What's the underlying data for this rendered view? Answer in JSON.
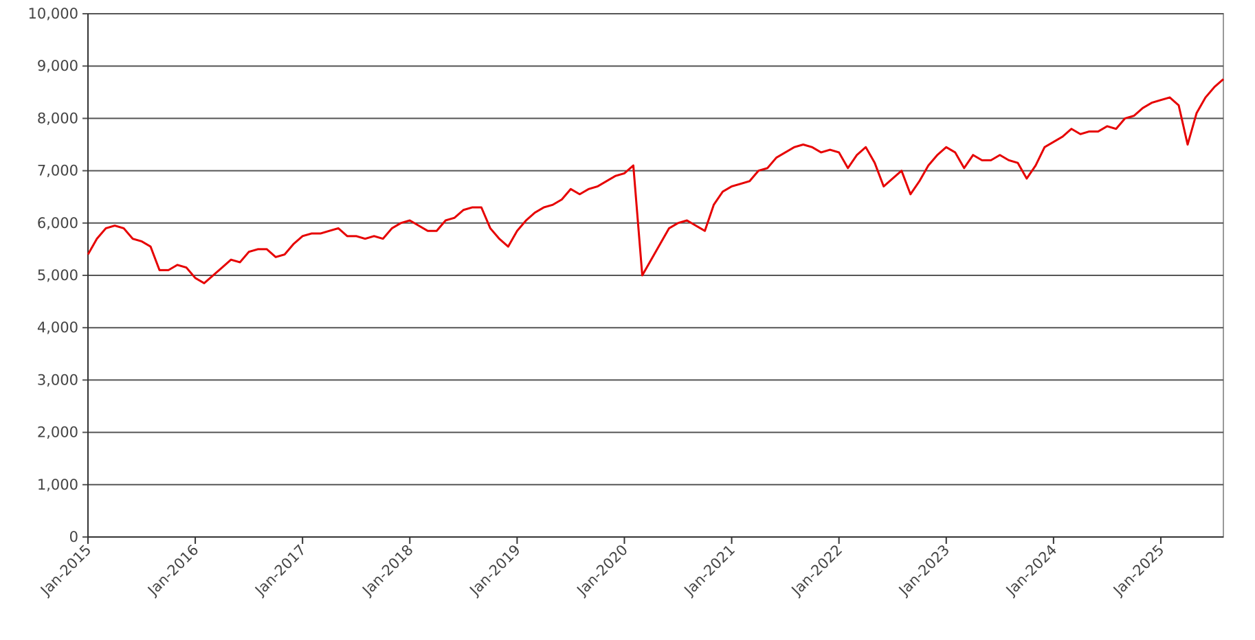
{
  "chart_data": {
    "type": "line",
    "x": [
      "2015-01",
      "2015-02",
      "2015-03",
      "2015-04",
      "2015-05",
      "2015-06",
      "2015-07",
      "2015-08",
      "2015-09",
      "2015-10",
      "2015-11",
      "2015-12",
      "2016-01",
      "2016-02",
      "2016-03",
      "2016-04",
      "2016-05",
      "2016-06",
      "2016-07",
      "2016-08",
      "2016-09",
      "2016-10",
      "2016-11",
      "2016-12",
      "2017-01",
      "2017-02",
      "2017-03",
      "2017-04",
      "2017-05",
      "2017-06",
      "2017-07",
      "2017-08",
      "2017-09",
      "2017-10",
      "2017-11",
      "2017-12",
      "2018-01",
      "2018-02",
      "2018-03",
      "2018-04",
      "2018-05",
      "2018-06",
      "2018-07",
      "2018-08",
      "2018-09",
      "2018-10",
      "2018-11",
      "2018-12",
      "2019-01",
      "2019-02",
      "2019-03",
      "2019-04",
      "2019-05",
      "2019-06",
      "2019-07",
      "2019-08",
      "2019-09",
      "2019-10",
      "2019-11",
      "2019-12",
      "2020-01",
      "2020-02",
      "2020-03",
      "2020-04",
      "2020-05",
      "2020-06",
      "2020-07",
      "2020-08",
      "2020-09",
      "2020-10",
      "2020-11",
      "2020-12",
      "2021-01",
      "2021-02",
      "2021-03",
      "2021-04",
      "2021-05",
      "2021-06",
      "2021-07",
      "2021-08",
      "2021-09",
      "2021-10",
      "2021-11",
      "2021-12",
      "2022-01",
      "2022-02",
      "2022-03",
      "2022-04",
      "2022-05",
      "2022-06",
      "2022-07",
      "2022-08",
      "2022-09",
      "2022-10",
      "2022-11",
      "2022-12",
      "2023-01",
      "2023-02",
      "2023-03",
      "2023-04",
      "2023-05",
      "2023-06",
      "2023-07",
      "2023-08",
      "2023-09",
      "2023-10",
      "2023-11",
      "2023-12",
      "2024-01",
      "2024-02",
      "2024-03",
      "2024-04",
      "2024-05",
      "2024-06",
      "2024-07",
      "2024-08",
      "2024-09",
      "2024-10",
      "2024-11",
      "2024-12",
      "2025-01",
      "2025-02",
      "2025-03",
      "2025-04",
      "2025-05",
      "2025-06",
      "2025-07",
      "2025-08"
    ],
    "series": [
      {
        "color": "#e60000",
        "values": [
          5400,
          5700,
          5900,
          5950,
          5900,
          5700,
          5650,
          5550,
          5100,
          5100,
          5200,
          5150,
          4950,
          4850,
          5000,
          5150,
          5300,
          5250,
          5450,
          5500,
          5500,
          5350,
          5400,
          5600,
          5750,
          5800,
          5800,
          5850,
          5900,
          5750,
          5750,
          5700,
          5750,
          5700,
          5900,
          6000,
          6050,
          5950,
          5850,
          5850,
          6050,
          6100,
          6250,
          6300,
          6300,
          5900,
          5700,
          5550,
          5850,
          6050,
          6200,
          6300,
          6350,
          6450,
          6650,
          6550,
          6650,
          6700,
          6800,
          6900,
          6950,
          7100,
          5000,
          5300,
          5600,
          5900,
          6000,
          6050,
          5950,
          5850,
          6350,
          6600,
          6700,
          6750,
          6800,
          7000,
          7050,
          7250,
          7350,
          7450,
          7500,
          7450,
          7350,
          7400,
          7350,
          7050,
          7300,
          7450,
          7150,
          6700,
          6850,
          7000,
          6550,
          6800,
          7100,
          7300,
          7450,
          7350,
          7050,
          7300,
          7200,
          7200,
          7300,
          7200,
          7150,
          6850,
          7100,
          7450,
          7550,
          7650,
          7800,
          7700,
          7750,
          7750,
          7850,
          7800,
          8000,
          8050,
          8200,
          8300,
          8350,
          8400,
          8250,
          7500,
          8100,
          8400,
          8600,
          8750
        ]
      }
    ],
    "xlim": [
      "2015-01",
      "2025-08"
    ],
    "xticks": [
      {
        "value": "2015-01",
        "label": "Jan-2015"
      },
      {
        "value": "2016-01",
        "label": "Jan-2016"
      },
      {
        "value": "2017-01",
        "label": "Jan-2017"
      },
      {
        "value": "2018-01",
        "label": "Jan-2018"
      },
      {
        "value": "2019-01",
        "label": "Jan-2019"
      },
      {
        "value": "2020-01",
        "label": "Jan-2020"
      },
      {
        "value": "2021-01",
        "label": "Jan-2021"
      },
      {
        "value": "2022-01",
        "label": "Jan-2022"
      },
      {
        "value": "2023-01",
        "label": "Jan-2023"
      },
      {
        "value": "2024-01",
        "label": "Jan-2024"
      },
      {
        "value": "2025-01",
        "label": "Jan-2025"
      }
    ],
    "ylim": [
      0,
      10000
    ],
    "yticks": [
      0,
      {
        "value": 1000,
        "label": "1,000"
      },
      {
        "value": 2000,
        "label": "2,000"
      },
      {
        "value": 3000,
        "label": "3,000"
      },
      {
        "value": 4000,
        "label": "4,000"
      },
      {
        "value": 5000,
        "label": "5,000"
      },
      {
        "value": 6000,
        "label": "6,000"
      },
      {
        "value": 7000,
        "label": "7,000"
      },
      {
        "value": 8000,
        "label": "8,000"
      },
      {
        "value": 9000,
        "label": "9,000"
      },
      {
        "value": 10000,
        "label": "10,000"
      }
    ],
    "grid": true
  }
}
